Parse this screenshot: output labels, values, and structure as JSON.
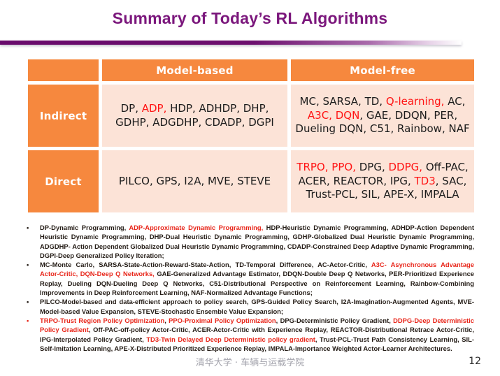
{
  "title": "Summary of Today’s RL Algorithms",
  "bullet_glyph": "•",
  "colors": {
    "title_purple": "#7B177C",
    "underline_bar_purple": "#690B6C",
    "table_header_orange": "#F6883E",
    "table_cell_pink": "#FCE3D7",
    "highlight_red": "#FF1414",
    "notes_red": "#E8261A",
    "notes_dark": "#241C16",
    "footer_gray": "#A2A2AB"
  },
  "table": {
    "col_headers": [
      "Model-based",
      "Model-free"
    ],
    "rows": [
      {
        "label": "Indirect",
        "model_based": [
          {
            "t": "DP, ",
            "c": "dark"
          },
          {
            "t": "ADP,",
            "c": "red"
          },
          {
            "t": " HDP, ADHDP, DHP, GDHP, ADGDHP, CDADP, DGPI",
            "c": "dark"
          }
        ],
        "model_free": [
          {
            "t": "MC, SARSA, TD, ",
            "c": "dark"
          },
          {
            "t": "Q-learning,",
            "c": "red"
          },
          {
            "t": " AC, ",
            "c": "dark"
          },
          {
            "t": "A3C,",
            "c": "red"
          },
          {
            "t": " ",
            "c": "dark"
          },
          {
            "t": "DQN",
            "c": "red"
          },
          {
            "t": ", GAE, DDQN, PER, Dueling DQN, C51, Rainbow, NAF",
            "c": "dark"
          }
        ]
      },
      {
        "label": "Direct",
        "model_based": [
          {
            "t": "PILCO, GPS, I2A, MVE, STEVE",
            "c": "dark"
          }
        ],
        "model_free": [
          {
            "t": "TRPO,",
            "c": "red"
          },
          {
            "t": " ",
            "c": "dark"
          },
          {
            "t": "PPO,",
            "c": "red"
          },
          {
            "t": " DPG, ",
            "c": "dark"
          },
          {
            "t": "DDPG,",
            "c": "red"
          },
          {
            "t": " Off-PAC, ACER, REACTOR, IPG, ",
            "c": "dark"
          },
          {
            "t": "TD3",
            "c": "red"
          },
          {
            "t": ", SAC, Trust-PCL, SIL, APE-X, IMPALA",
            "c": "dark"
          }
        ]
      }
    ]
  },
  "notes": [
    {
      "marker_color": "dark",
      "segments": [
        {
          "t": "DP-Dynamic Programming, ",
          "c": "dark"
        },
        {
          "t": "ADP-Approximate Dynamic Programming,",
          "c": "red"
        },
        {
          "t": " HDP-Heuristic Dynamic Programming, ADHDP-Action Dependent Heuristic Dynamic Programming, DHP-Dual Heuristic Dynamic Programming, GDHP-Globalized Dual Heuristic Dynamic Programming, ADGDHP- Action Dependent Globalized Dual Heuristic Dynamic Programming, CDADP-Constrained Deep Adaptive Dynamic Programming, DGPI-Deep Generalized Policy Iteration;",
          "c": "dark"
        }
      ]
    },
    {
      "marker_color": "dark",
      "segments": [
        {
          "t": "MC-Monte Carlo, SARSA-State-Action-Reward-State-Action, TD-Temporal Difference, AC-Actor-Critic, ",
          "c": "dark"
        },
        {
          "t": "A3C- Asynchronous Advantage Actor-Critic, DQN-Deep Q Networks,",
          "c": "red"
        },
        {
          "t": " GAE-Generalized Advantage Estimator, DDQN-Double Deep Q Networks, PER-Prioritized Experience Replay, Dueling DQN-Dueling Deep Q Networks, C51-Distributional Perspective on Reinforcement Learning, Rainbow-Combining Improvements in Deep Reinforcement Learning, NAF-Normalized Advantage Functions;",
          "c": "dark"
        }
      ]
    },
    {
      "marker_color": "dark",
      "segments": [
        {
          "t": "PILCO-Model-based and data-efficient approach to policy search, GPS-Guided Policy Search, I2A-Imagination-Augmented Agents, MVE-Model-based Value Expansion, STEVE-Stochastic Ensemble Value Expansion;",
          "c": "dark"
        }
      ]
    },
    {
      "marker_color": "red",
      "segments": [
        {
          "t": "TRPO-Trust Region Policy Optimization",
          "c": "red"
        },
        {
          "t": ", ",
          "c": "dark"
        },
        {
          "t": "PPO-Proximal Policy Optimization",
          "c": "red"
        },
        {
          "t": ", DPG-Deterministic Policy Gradient, ",
          "c": "dark"
        },
        {
          "t": "DDPG-Deep Deterministic Policy Gradient",
          "c": "red"
        },
        {
          "t": ", Off-PAC-off-policy Actor-Critic, ACER-Actor-Critic with Experience Replay, REACTOR-Distributional Retrace Actor-Critic, IPG-Interpolated Policy Gradient, ",
          "c": "dark"
        },
        {
          "t": "TD3-Twin Delayed Deep Deterministic policy gradient",
          "c": "red"
        },
        {
          "t": ", Trust-PCL-Trust Path Consistency Learning, SIL-Self-Imitation Learning, APE-X-Distributed Prioritized Experience Replay, IMPALA-Importance Weighted Actor-Learner Architectures.",
          "c": "dark"
        }
      ]
    }
  ],
  "footer": {
    "institution": "清华大学 · 车辆与运载学院",
    "page_number": "12"
  }
}
